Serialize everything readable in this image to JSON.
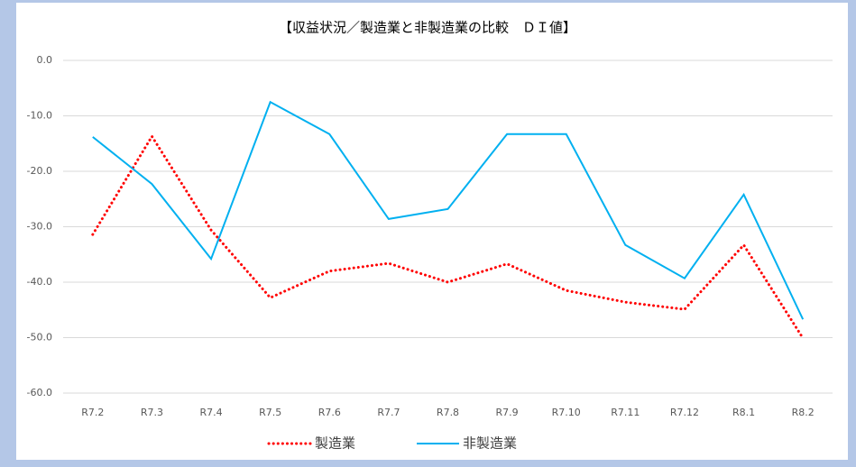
{
  "chart_data": {
    "type": "line",
    "title": "【収益状況／製造業と非製造業の比較　ＤＩ値】",
    "categories": [
      "R7.2",
      "R7.3",
      "R7.4",
      "R7.5",
      "R7.6",
      "R7.7",
      "R7.8",
      "R7.9",
      "R7.10",
      "R7.11",
      "R7.12",
      "R8.1",
      "R8.2"
    ],
    "series": [
      {
        "name": "製造業",
        "color": "#ff0000",
        "dash": "dotted",
        "values": [
          -31.4,
          -13.7,
          -30.6,
          -42.8,
          -38.0,
          -36.6,
          -40.0,
          -36.7,
          -41.5,
          -43.6,
          -44.9,
          -33.3,
          -50.1
        ]
      },
      {
        "name": "非製造業",
        "color": "#00b0f0",
        "dash": "solid",
        "values": [
          -13.8,
          -22.3,
          -35.8,
          -7.5,
          -13.3,
          -28.6,
          -26.8,
          -13.3,
          -13.3,
          -33.3,
          -39.3,
          -24.2,
          -46.7
        ]
      }
    ],
    "ylim": [
      -60,
      0
    ],
    "yticks": [
      {
        "value": 0,
        "label": "0.0"
      },
      {
        "value": -10,
        "label": "-10.0"
      },
      {
        "value": -20,
        "label": "-20.0"
      },
      {
        "value": -30,
        "label": "-30.0"
      },
      {
        "value": -40,
        "label": "-40.0"
      },
      {
        "value": -50,
        "label": "-50.0"
      },
      {
        "value": -60,
        "label": "-60.0"
      }
    ],
    "grid": true,
    "legend": "bottom"
  }
}
